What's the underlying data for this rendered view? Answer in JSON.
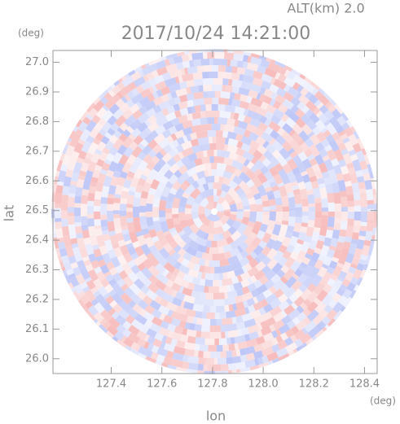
{
  "chart_data": {
    "type": "radar-ppi",
    "title": "2017/10/24 14:21:00",
    "annotation": "ALT(km) 2.0",
    "xlabel": "lon",
    "ylabel": "lat",
    "xunit": "(deg)",
    "yunit": "(deg)",
    "xlim": [
      127.17,
      128.45
    ],
    "ylim": [
      25.95,
      27.04
    ],
    "xticks": [
      127.4,
      127.6,
      127.8,
      {
        "value": 128.0,
        "label": "128.0"
      },
      128.2,
      128.4
    ],
    "yticks": [
      {
        "value": 26.0,
        "label": "26.0"
      },
      26.1,
      26.2,
      26.3,
      26.4,
      26.5,
      26.6,
      26.7,
      26.8,
      26.9,
      {
        "value": 27.0,
        "label": "27.0"
      }
    ],
    "colors": [
      "#f4a6a6",
      "#a8b4f4"
    ]
  }
}
